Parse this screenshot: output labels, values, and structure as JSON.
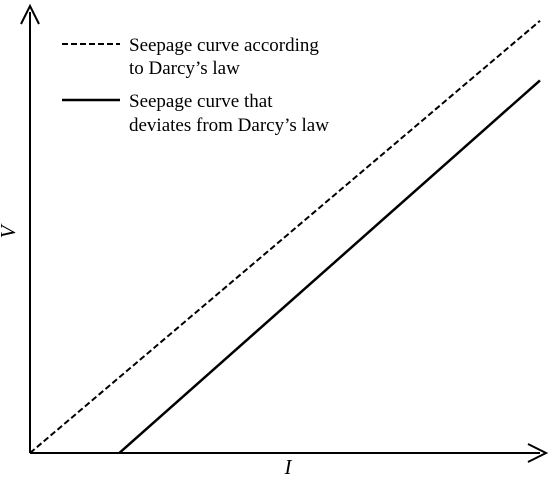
{
  "chart_data": {
    "type": "line",
    "xlabel": "I",
    "ylabel": "V",
    "series": [
      {
        "name": "Seepage curve according to Darcy’s law",
        "label_lines": [
          "Seepage curve according",
          "to Darcy’s law"
        ],
        "style": "dashed",
        "color": "#000000",
        "points": [
          [
            0,
            0
          ],
          [
            1,
            0.98
          ]
        ]
      },
      {
        "name": "Seepage curve that deviates from Darcy’s law",
        "label_lines": [
          "Seepage curve that",
          "deviates from Darcy’s law"
        ],
        "style": "solid",
        "color": "#000000",
        "points": [
          [
            0.175,
            0
          ],
          [
            1,
            0.845
          ]
        ]
      }
    ],
    "xlim": [
      0,
      1
    ],
    "ylim": [
      0,
      1
    ],
    "grid": false,
    "legend_position": "top-left"
  }
}
